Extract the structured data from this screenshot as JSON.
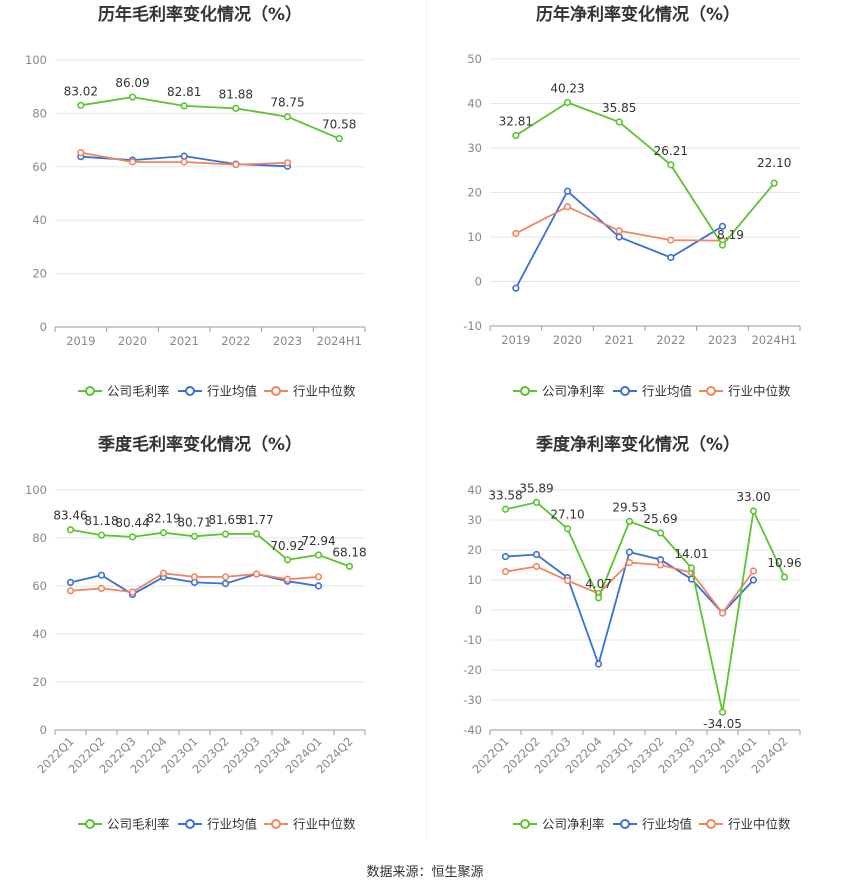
{
  "colors": {
    "company": "#5cc22f",
    "industry_avg": "#3a6fd8",
    "industry_median": "#f0855f",
    "grid": "#e6e6e6",
    "axis": "#999999",
    "divider": "#eeeeee"
  },
  "legend": {
    "gross": [
      "公司毛利率",
      "行业均值",
      "行业中位数"
    ],
    "net": [
      "公司净利率",
      "行业均值",
      "行业中位数"
    ]
  },
  "source": "数据来源：恒生聚源",
  "chart_data": [
    {
      "type": "line",
      "title": "历年毛利率变化情况（%）",
      "categories": [
        "2019",
        "2020",
        "2021",
        "2022",
        "2023",
        "2024H1"
      ],
      "ylim": [
        0,
        100
      ],
      "yticks": [
        0,
        20,
        40,
        60,
        80,
        100
      ],
      "series": [
        {
          "name": "公司毛利率",
          "values": [
            83.02,
            86.09,
            82.81,
            81.88,
            78.75,
            70.58
          ],
          "labels": [
            "83.02",
            "86.09",
            "82.81",
            "81.88",
            "78.75",
            "70.58"
          ]
        },
        {
          "name": "行业均值",
          "values": [
            63.8,
            62.5,
            64.0,
            61.0,
            60.2,
            null
          ]
        },
        {
          "name": "行业中位数",
          "values": [
            65.3,
            61.8,
            61.8,
            60.8,
            61.5,
            null
          ]
        }
      ]
    },
    {
      "type": "line",
      "title": "历年净利率变化情况（%）",
      "categories": [
        "2019",
        "2020",
        "2021",
        "2022",
        "2023",
        "2024H1"
      ],
      "ylim": [
        -10,
        50
      ],
      "yticks": [
        -10,
        0,
        10,
        20,
        30,
        40,
        50
      ],
      "series": [
        {
          "name": "公司净利率",
          "values": [
            32.81,
            40.23,
            35.85,
            26.21,
            8.19,
            22.1
          ],
          "labels": [
            "32.81",
            "40.23",
            "35.85",
            "26.21",
            "8.19",
            "22.10"
          ]
        },
        {
          "name": "行业均值",
          "values": [
            -1.5,
            20.3,
            10.0,
            5.4,
            12.4,
            null
          ]
        },
        {
          "name": "行业中位数",
          "values": [
            10.8,
            16.8,
            11.4,
            9.3,
            9.2,
            null
          ]
        }
      ]
    },
    {
      "type": "line",
      "title": "季度毛利率变化情况（%）",
      "categories": [
        "2022Q1",
        "2022Q2",
        "2022Q3",
        "2022Q4",
        "2023Q1",
        "2023Q2",
        "2023Q3",
        "2023Q4",
        "2024Q1",
        "2024Q2"
      ],
      "ylim": [
        0,
        100
      ],
      "yticks": [
        0,
        20,
        40,
        60,
        80,
        100
      ],
      "series": [
        {
          "name": "公司毛利率",
          "values": [
            83.46,
            81.18,
            80.44,
            82.19,
            80.71,
            81.65,
            81.77,
            70.92,
            72.94,
            68.18
          ],
          "labels": [
            "83.46",
            "81.18",
            "80.44",
            "82.19",
            "80.71",
            "81.65",
            "81.77",
            "70.92",
            "72.94",
            "68.18"
          ]
        },
        {
          "name": "行业均值",
          "values": [
            61.5,
            64.5,
            56.5,
            63.7,
            61.5,
            61.0,
            65.0,
            62.0,
            60.0,
            null
          ]
        },
        {
          "name": "行业中位数",
          "values": [
            58.0,
            59.0,
            57.5,
            65.3,
            63.8,
            63.8,
            65.0,
            62.8,
            63.8,
            null
          ]
        }
      ]
    },
    {
      "type": "line",
      "title": "季度净利率变化情况（%）",
      "categories": [
        "2022Q1",
        "2022Q2",
        "2022Q3",
        "2022Q4",
        "2023Q1",
        "2023Q2",
        "2023Q3",
        "2023Q4",
        "2024Q1",
        "2024Q2"
      ],
      "ylim": [
        -40,
        40
      ],
      "yticks": [
        -40,
        -30,
        -20,
        -10,
        0,
        10,
        20,
        30,
        40
      ],
      "series": [
        {
          "name": "公司净利率",
          "values": [
            33.58,
            35.89,
            27.1,
            4.07,
            29.53,
            25.69,
            14.01,
            -34.05,
            33.0,
            10.96
          ],
          "labels": [
            "33.58",
            "35.89",
            "27.10",
            "4.07",
            "29.53",
            "25.69",
            "14.01",
            "-34.05",
            "33.00",
            "10.96"
          ]
        },
        {
          "name": "行业均值",
          "values": [
            17.8,
            18.5,
            10.8,
            -18.0,
            19.3,
            16.8,
            10.3,
            -1.0,
            10.0,
            null
          ]
        },
        {
          "name": "行业中位数",
          "values": [
            12.8,
            14.5,
            9.8,
            5.5,
            15.8,
            15.0,
            12.5,
            -1.0,
            13.0,
            null
          ]
        }
      ]
    }
  ]
}
